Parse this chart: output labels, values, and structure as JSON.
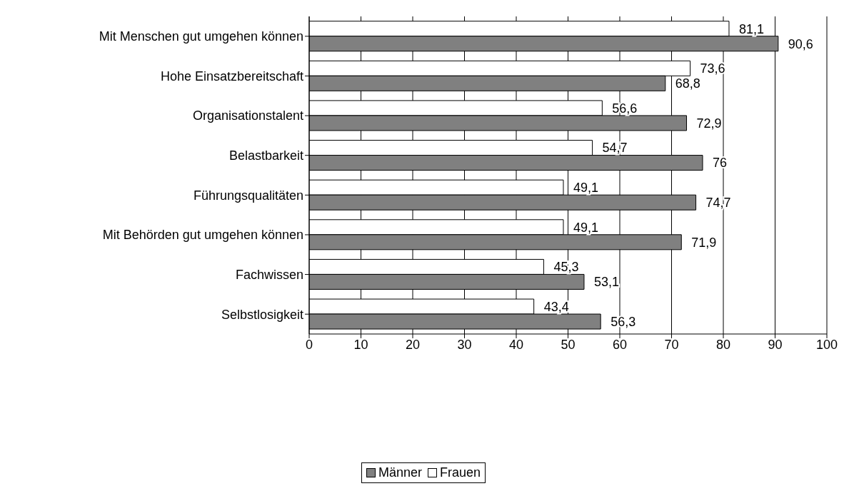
{
  "chart_data": {
    "type": "bar",
    "orientation": "horizontal",
    "categories": [
      "Mit Menschen gut umgehen können",
      "Hohe Einsatzbereitschaft",
      "Organisationstalent",
      "Belastbarkeit",
      "Führungsqualitäten",
      "Mit Behörden gut umgehen können",
      "Fachwissen",
      "Selbstlosigkeit"
    ],
    "series": [
      {
        "name": "Männer",
        "color": "#808080",
        "values": [
          90.6,
          68.8,
          72.9,
          76,
          74.7,
          71.9,
          53.1,
          56.3
        ],
        "value_labels": [
          "90,6",
          "68,8",
          "72,9",
          "76",
          "74,7",
          "71,9",
          "53,1",
          "56,3"
        ]
      },
      {
        "name": "Frauen",
        "color": "#ffffff",
        "values": [
          81.1,
          73.6,
          56.6,
          54.7,
          49.1,
          49.1,
          45.3,
          43.4
        ],
        "value_labels": [
          "81,1",
          "73,6",
          "56,6",
          "54,7",
          "49,1",
          "49,1",
          "45,3",
          "43,4"
        ]
      }
    ],
    "xlim": [
      0,
      100
    ],
    "xticks": [
      0,
      10,
      20,
      30,
      40,
      50,
      60,
      70,
      80,
      90,
      100
    ],
    "grid": "x",
    "legend": "bottom"
  }
}
